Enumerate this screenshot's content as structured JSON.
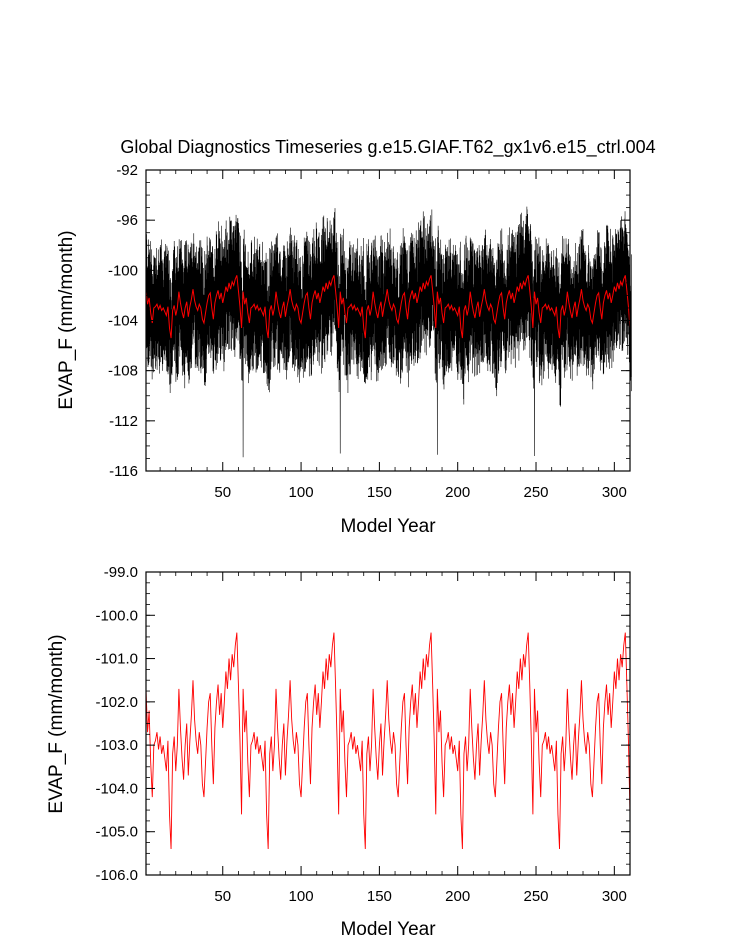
{
  "chart_data": [
    {
      "type": "line",
      "title": "Global Diagnostics Timeseries g.e15.GIAF.T62_gx1v6.e15_ctrl.004",
      "xlabel": "Model Year",
      "ylabel": "EVAP_F (mm/month)",
      "xlim": [
        1,
        310
      ],
      "ylim": [
        -116,
        -92
      ],
      "xticks": [
        50,
        100,
        150,
        200,
        250,
        300
      ],
      "yticks": [
        -116,
        -112,
        -108,
        -104,
        -100,
        -96,
        -92
      ],
      "ytick_labels": [
        "-116",
        "-112",
        "-108",
        "-104",
        "-100",
        "-96",
        "-92"
      ],
      "grid": false,
      "series": [
        {
          "description": "monthly values",
          "color": "#000000",
          "x_start": 1,
          "x_end": 310,
          "resolution": "monthly",
          "typical_range": [
            -108,
            -97
          ],
          "extremes": [
            {
              "x": 63,
              "y": -114.9
            },
            {
              "x": 125,
              "y": -114.6
            },
            {
              "x": 187,
              "y": -114.7
            },
            {
              "x": 249,
              "y": -114.8
            }
          ]
        },
        {
          "description": "annual mean",
          "color": "#ff0000",
          "same_values_as": "chart_data.1.series.0"
        }
      ]
    },
    {
      "type": "line",
      "title": "",
      "xlabel": "Model Year",
      "ylabel": "EVAP_F (mm/month)",
      "xlim": [
        1,
        310
      ],
      "ylim": [
        -106,
        -99
      ],
      "xticks": [
        50,
        100,
        150,
        200,
        250,
        300
      ],
      "yticks": [
        -106,
        -105,
        -104,
        -103,
        -102,
        -101,
        -100,
        -99
      ],
      "ytick_labels": [
        "-106.0",
        "-105.0",
        "-104.0",
        "-103.0",
        "-102.0",
        "-101.0",
        "-100.0",
        "-99.0"
      ],
      "grid": false,
      "series": [
        {
          "description": "annual mean",
          "color": "#ff0000",
          "cycle_length_years": 62,
          "cycles": 5,
          "cycle_values": [
            -101.7,
            -102.7,
            -102.2,
            -103.4,
            -104.2,
            -103.0,
            -102.9,
            -102.7,
            -103.1,
            -102.8,
            -103.2,
            -103.0,
            -103.3,
            -103.6,
            -102.9,
            -104.6,
            -105.4,
            -103.2,
            -102.8,
            -103.6,
            -103.0,
            -101.7,
            -102.6,
            -103.3,
            -103.8,
            -103.0,
            -102.5,
            -103.7,
            -102.9,
            -102.3,
            -101.5,
            -102.4,
            -102.9,
            -103.2,
            -102.7,
            -103.0,
            -103.9,
            -104.2,
            -103.4,
            -102.6,
            -102.0,
            -101.8,
            -103.0,
            -103.9,
            -102.6,
            -102.0,
            -101.6,
            -102.3,
            -101.8,
            -102.6,
            -102.0,
            -101.3,
            -101.7,
            -101.0,
            -101.5,
            -100.9,
            -101.2,
            -100.7,
            -100.4,
            -101.6,
            -102.9,
            -104.6
          ]
        }
      ]
    }
  ]
}
